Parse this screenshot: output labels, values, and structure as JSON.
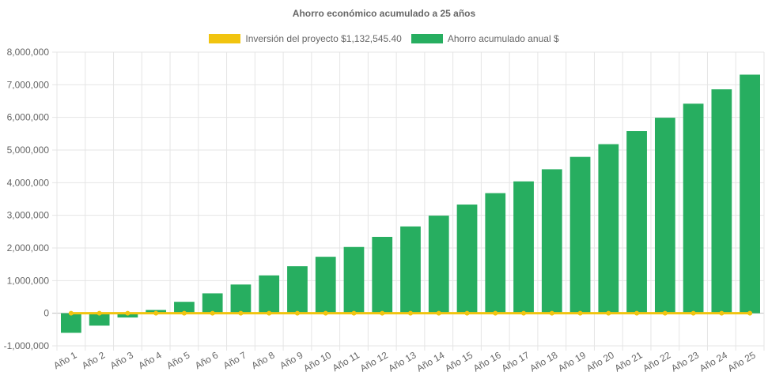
{
  "chart_data": {
    "type": "bar",
    "title": "Ahorro económico acumulado a 25 años",
    "categories": [
      "Año 1",
      "Año 2",
      "Año 3",
      "Año 4",
      "Año 5",
      "Año 6",
      "Año 7",
      "Año 8",
      "Año 9",
      "Año 10",
      "Año 11",
      "Año 12",
      "Año 13",
      "Año 14",
      "Año 15",
      "Año 16",
      "Año 17",
      "Año 18",
      "Año 19",
      "Año 20",
      "Año 21",
      "Año 22",
      "Año 23",
      "Año 24",
      "Año 25"
    ],
    "series": [
      {
        "name": "Inversión del proyecto $1,132,545.40",
        "type": "line",
        "color": "#f1c40f",
        "values": [
          0,
          0,
          0,
          0,
          0,
          0,
          0,
          0,
          0,
          0,
          0,
          0,
          0,
          0,
          0,
          0,
          0,
          0,
          0,
          0,
          0,
          0,
          0,
          0,
          0
        ]
      },
      {
        "name": "Ahorro acumulado anual $",
        "type": "bar",
        "color": "#27ae60",
        "values": [
          -600000,
          -380000,
          -130000,
          100000,
          350000,
          610000,
          880000,
          1160000,
          1440000,
          1730000,
          2030000,
          2340000,
          2660000,
          2990000,
          3330000,
          3680000,
          4040000,
          4410000,
          4790000,
          5180000,
          5580000,
          5990000,
          6420000,
          6860000,
          7310000
        ]
      }
    ],
    "ylim": [
      -1000000,
      8000000
    ],
    "yticks": [
      "-1,000,000",
      "0",
      "1,000,000",
      "2,000,000",
      "3,000,000",
      "4,000,000",
      "5,000,000",
      "6,000,000",
      "7,000,000",
      "8,000,000"
    ],
    "ytick_values": [
      -1000000,
      0,
      1000000,
      2000000,
      3000000,
      4000000,
      5000000,
      6000000,
      7000000,
      8000000
    ],
    "grid": true,
    "legend_position": "top"
  }
}
